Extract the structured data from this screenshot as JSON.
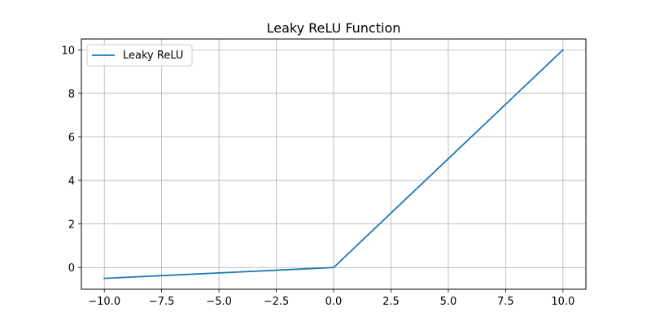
{
  "chart_data": {
    "type": "line",
    "title": "Leaky ReLU Function",
    "xlabel": "",
    "ylabel": "",
    "xlim": [
      -11.0,
      11.0
    ],
    "ylim": [
      -1.0,
      10.5
    ],
    "x_ticks": [
      -10.0,
      -7.5,
      -5.0,
      -2.5,
      0.0,
      2.5,
      5.0,
      7.5,
      10.0
    ],
    "x_tick_labels": [
      "−10.0",
      "−7.5",
      "−5.0",
      "−2.5",
      "0.0",
      "2.5",
      "5.0",
      "7.5",
      "10.0"
    ],
    "y_ticks": [
      0,
      2,
      4,
      6,
      8,
      10
    ],
    "y_tick_labels": [
      "0",
      "2",
      "4",
      "6",
      "8",
      "10"
    ],
    "grid": true,
    "legend_position": "upper-left",
    "series": [
      {
        "name": "Leaky ReLU",
        "color": "#1f77b4",
        "x": [
          -10,
          0,
          10
        ],
        "y": [
          -0.5,
          0,
          10
        ]
      }
    ]
  }
}
